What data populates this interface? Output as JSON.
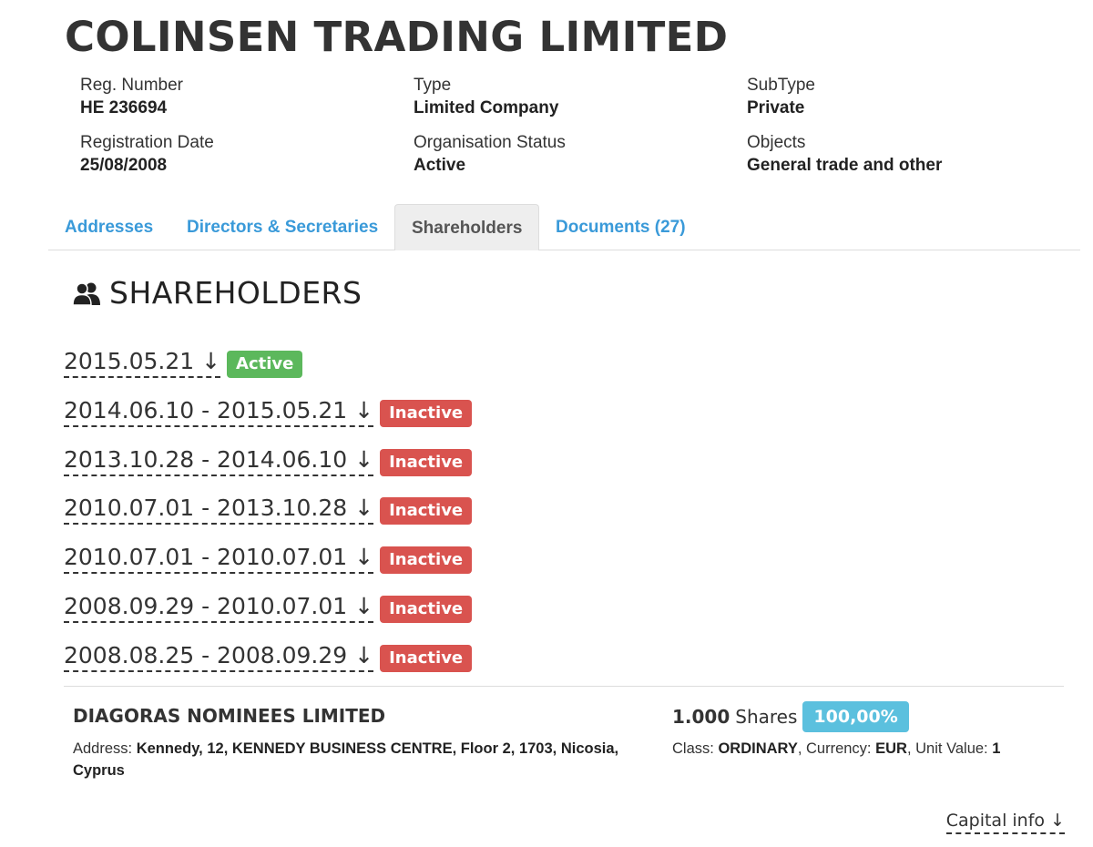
{
  "company": {
    "name": "COLINSEN TRADING LIMITED",
    "fields": [
      [
        {
          "label": "Reg. Number",
          "value": "HE 236694"
        },
        {
          "label": "Type",
          "value": "Limited Company"
        },
        {
          "label": "SubType",
          "value": "Private"
        }
      ],
      [
        {
          "label": "Registration Date",
          "value": "25/08/2008"
        },
        {
          "label": "Organisation Status",
          "value": "Active"
        },
        {
          "label": "Objects",
          "value": "General trade and other"
        }
      ]
    ]
  },
  "tabs": [
    {
      "label": "Addresses",
      "active": false
    },
    {
      "label": "Directors & Secretaries",
      "active": false
    },
    {
      "label": "Shareholders",
      "active": true
    },
    {
      "label": "Documents (27)",
      "active": false
    }
  ],
  "section": {
    "title": "SHAREHOLDERS",
    "icon": "users-icon"
  },
  "periods": [
    {
      "label": "2015.05.21 ↓",
      "status": "Active"
    },
    {
      "label": "2014.06.10 - 2015.05.21 ↓",
      "status": "Inactive"
    },
    {
      "label": "2013.10.28 - 2014.06.10 ↓",
      "status": "Inactive"
    },
    {
      "label": "2010.07.01 - 2013.10.28 ↓",
      "status": "Inactive"
    },
    {
      "label": "2010.07.01 - 2010.07.01 ↓",
      "status": "Inactive"
    },
    {
      "label": "2008.09.29 - 2010.07.01 ↓",
      "status": "Inactive"
    },
    {
      "label": "2008.08.25 - 2008.09.29 ↓",
      "status": "Inactive"
    }
  ],
  "status_colors": {
    "Active": "#5cb85c",
    "Inactive": "#d9534f"
  },
  "shareholder": {
    "name": "DIAGORAS NOMINEES LIMITED",
    "address_label": "Address:",
    "address": "Kennedy, 12, KENNEDY BUSINESS CENTRE, Floor 2, 1703, Nicosia, Cyprus",
    "shares_count": "1.000",
    "shares_word": "Shares",
    "percentage": "100,00%",
    "class_label": "Class:",
    "class_value": "ORDINARY",
    "currency_label": "Currency:",
    "currency_value": "EUR",
    "unit_value_label": "Unit Value:",
    "unit_value": "1"
  },
  "capital_link": "Capital info ↓"
}
